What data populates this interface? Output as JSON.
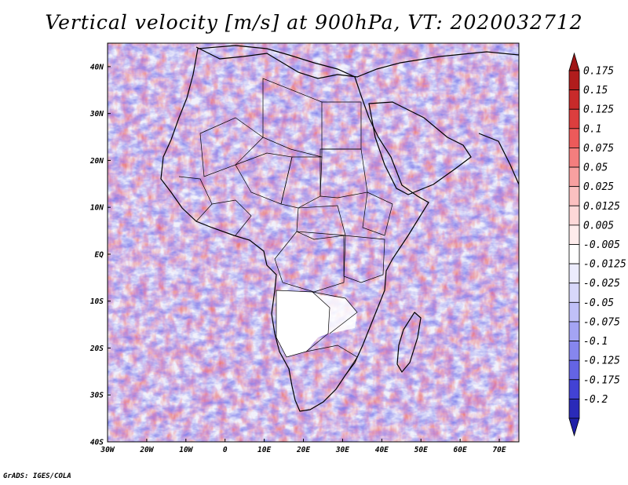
{
  "title": "Vertical velocity [m/s] at 900hPa, VT: 2020032712",
  "footer": "GrADS: IGES/COLA",
  "map": {
    "lon_range": [
      -30,
      75
    ],
    "lat_range": [
      -40,
      45
    ],
    "lon_ticks": [
      {
        "value": -30,
        "label": "30W"
      },
      {
        "value": -20,
        "label": "20W"
      },
      {
        "value": -10,
        "label": "10W"
      },
      {
        "value": 0,
        "label": "0"
      },
      {
        "value": 10,
        "label": "10E"
      },
      {
        "value": 20,
        "label": "20E"
      },
      {
        "value": 30,
        "label": "30E"
      },
      {
        "value": 40,
        "label": "40E"
      },
      {
        "value": 50,
        "label": "50E"
      },
      {
        "value": 60,
        "label": "60E"
      },
      {
        "value": 70,
        "label": "70E"
      }
    ],
    "lat_ticks": [
      {
        "value": 40,
        "label": "40N"
      },
      {
        "value": 30,
        "label": "30N"
      },
      {
        "value": 20,
        "label": "20N"
      },
      {
        "value": 10,
        "label": "10N"
      },
      {
        "value": 0,
        "label": "EQ"
      },
      {
        "value": -10,
        "label": "10S"
      },
      {
        "value": -20,
        "label": "20S"
      },
      {
        "value": -30,
        "label": "30S"
      },
      {
        "value": -40,
        "label": "40S"
      }
    ]
  },
  "colorbar": {
    "levels": [
      {
        "label": "0.175",
        "color": "#b11c1c"
      },
      {
        "label": "0.15",
        "color": "#c82a2a"
      },
      {
        "label": "0.125",
        "color": "#dc3e3e"
      },
      {
        "label": "0.1",
        "color": "#ec5a5a"
      },
      {
        "label": "0.075",
        "color": "#f47e7e"
      },
      {
        "label": "0.05",
        "color": "#f8a0a0"
      },
      {
        "label": "0.025",
        "color": "#fbc0c0"
      },
      {
        "label": "0.0125",
        "color": "#fdd8d8"
      },
      {
        "label": "0.005",
        "color": "#feecec"
      },
      {
        "label": "-0.005",
        "color": "#ffffff"
      },
      {
        "label": "-0.0125",
        "color": "#ececfd"
      },
      {
        "label": "-0.025",
        "color": "#d8d8fb"
      },
      {
        "label": "-0.05",
        "color": "#c0c0f8"
      },
      {
        "label": "-0.075",
        "color": "#a4a4f4"
      },
      {
        "label": "-0.1",
        "color": "#8686ee"
      },
      {
        "label": "-0.125",
        "color": "#6464e4"
      },
      {
        "label": "-0.175",
        "color": "#4242d4"
      },
      {
        "label": "-0.2",
        "color": "#2a2ab8"
      }
    ],
    "over_color": "#a01616",
    "under_color": "#2020a8"
  }
}
